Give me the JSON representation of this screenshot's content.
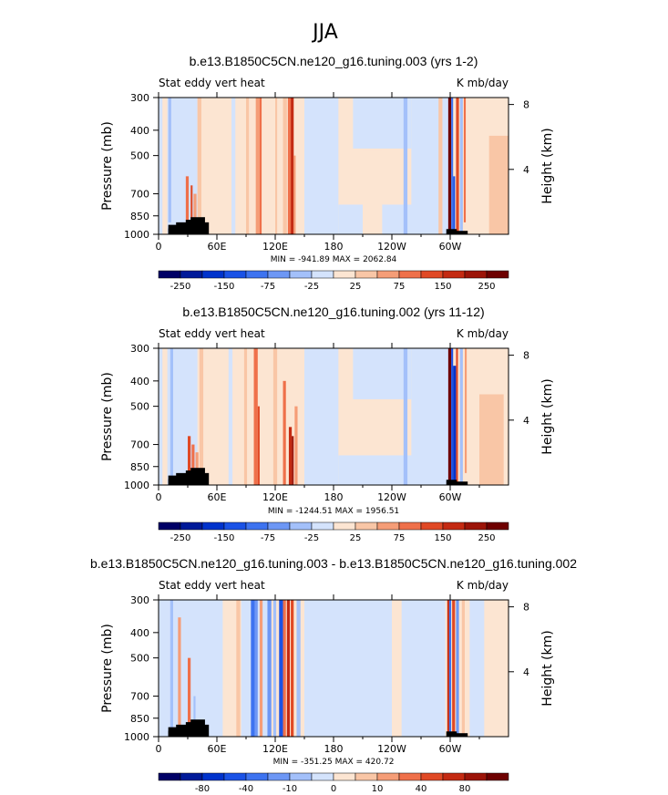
{
  "figure": {
    "title": "JJA"
  },
  "chart_data": [
    {
      "type": "heatmap",
      "title": "b.e13.B1850C5CN.ne120_g16.tuning.003 (yrs 1-2)",
      "left_string": "Stat eddy vert heat",
      "right_string": "K mb/day",
      "ylabel": "Pressure (mb)",
      "ylabel_right": "Height (km)",
      "x_ticks": [
        "0",
        "60E",
        "120E",
        "180",
        "120W",
        "60W"
      ],
      "y_ticks": [
        "300",
        "400",
        "500",
        "700",
        "850",
        "1000"
      ],
      "height_ticks": [
        "8",
        "4"
      ],
      "stats_text": "MIN = -941.89   MAX = 2062.84",
      "min": -941.89,
      "max": 2062.84,
      "colorbar_labels": [
        "-250",
        "-150",
        "-75",
        "-25",
        "25",
        "75",
        "150",
        "250"
      ],
      "colorbar_levels": [
        -300,
        -250,
        -200,
        -150,
        -100,
        -75,
        -50,
        -25,
        0,
        25,
        50,
        75,
        100,
        150,
        200,
        250,
        300
      ]
    },
    {
      "type": "heatmap",
      "title": "b.e13.B1850C5CN.ne120_g16.tuning.002 (yrs 11-12)",
      "left_string": "Stat eddy vert heat",
      "right_string": "K mb/day",
      "ylabel": "Pressure (mb)",
      "ylabel_right": "Height (km)",
      "x_ticks": [
        "0",
        "60E",
        "120E",
        "180",
        "120W",
        "60W"
      ],
      "y_ticks": [
        "300",
        "400",
        "500",
        "700",
        "850",
        "1000"
      ],
      "height_ticks": [
        "8",
        "4"
      ],
      "stats_text": "MIN = -1244.51   MAX = 1956.51",
      "min": -1244.51,
      "max": 1956.51,
      "colorbar_labels": [
        "-250",
        "-150",
        "-75",
        "-25",
        "25",
        "75",
        "150",
        "250"
      ],
      "colorbar_levels": [
        -300,
        -250,
        -200,
        -150,
        -100,
        -75,
        -50,
        -25,
        0,
        25,
        50,
        75,
        100,
        150,
        200,
        250,
        300
      ]
    },
    {
      "type": "heatmap",
      "title": "b.e13.B1850C5CN.ne120_g16.tuning.003 - b.e13.B1850C5CN.ne120_g16.tuning.002",
      "left_string": "Stat eddy vert heat",
      "right_string": "K mb/day",
      "ylabel": "Pressure (mb)",
      "ylabel_right": "Height (km)",
      "x_ticks": [
        "0",
        "60E",
        "120E",
        "180",
        "120W",
        "60W"
      ],
      "y_ticks": [
        "300",
        "400",
        "500",
        "700",
        "850",
        "1000"
      ],
      "height_ticks": [
        "8",
        "4"
      ],
      "stats_text": "MIN = -351.25   MAX = 420.72",
      "min": -351.25,
      "max": 420.72,
      "colorbar_labels": [
        "-80",
        "-40",
        "-10",
        "0",
        "10",
        "40",
        "80"
      ],
      "colorbar_levels": [
        -120,
        -100,
        -80,
        -60,
        -40,
        -20,
        -10,
        -5,
        0,
        5,
        10,
        20,
        40,
        60,
        80,
        100,
        120
      ]
    }
  ],
  "colors": {
    "colorbar": [
      "#000066",
      "#001a99",
      "#0033cc",
      "#1a52e6",
      "#3d73f0",
      "#6d97f5",
      "#a3c0fa",
      "#d4e3fc",
      "#fce5d2",
      "#f9c6a6",
      "#f59d77",
      "#ef704a",
      "#e04925",
      "#c42a12",
      "#9c1408",
      "#6e0000"
    ],
    "background_neg": "#d4e3fc",
    "background_pos": "#fce5d2",
    "topography": "#000000"
  }
}
